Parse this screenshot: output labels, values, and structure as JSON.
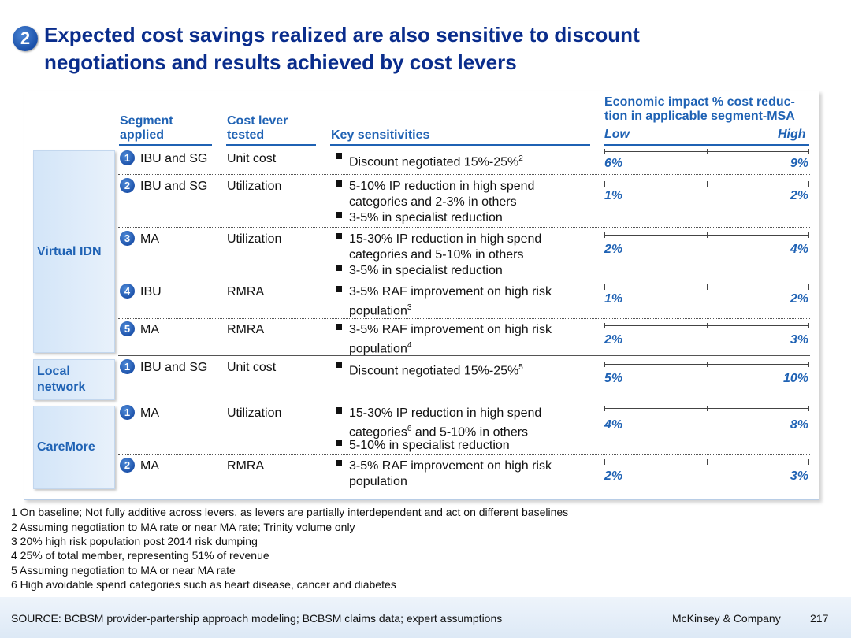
{
  "title": {
    "badge": "2",
    "line1": "Expected cost savings realized are also sensitive to discount",
    "line2": "negotiations and results achieved by cost levers"
  },
  "headers": {
    "segment_l1": "Segment",
    "segment_l2": "applied",
    "lever_l1": "Cost lever",
    "lever_l2": "tested",
    "key": "Key sensitivities",
    "econ_l1": "Economic impact % cost reduc-",
    "econ_l2": "tion in applicable segment-MSA",
    "low": "Low",
    "high": "High"
  },
  "groups": [
    {
      "name": "Virtual IDN"
    },
    {
      "name_l1": "Local",
      "name_l2": "network"
    },
    {
      "name": "CareMore"
    }
  ],
  "rows": [
    {
      "num": "1",
      "segment": "IBU and SG",
      "lever": "Unit cost",
      "b1": [
        "Discount negotiated 15%-25%"
      ],
      "sup1": "2",
      "low": "6%",
      "high": "9%"
    },
    {
      "num": "2",
      "segment": "IBU and SG",
      "lever": "Utilization",
      "b1": [
        "5-10% IP reduction in high spend",
        "categories and 2-3% in others"
      ],
      "b2": "3-5% in specialist reduction",
      "low": "1%",
      "high": "2%"
    },
    {
      "num": "3",
      "segment": "MA",
      "lever": "Utilization",
      "b1": [
        "15-30% IP reduction in high spend",
        "categories and 5-10% in others"
      ],
      "b2": "3-5% in specialist reduction",
      "low": "2%",
      "high": "4%"
    },
    {
      "num": "4",
      "segment": "IBU",
      "lever": "RMRA",
      "b1": [
        "3-5% RAF improvement on high risk",
        "population"
      ],
      "sup1": "3",
      "low": "1%",
      "high": "2%"
    },
    {
      "num": "5",
      "segment": "MA",
      "lever": "RMRA",
      "b1": [
        "3-5% RAF improvement on high risk",
        "population"
      ],
      "sup1": "4",
      "low": "2%",
      "high": "3%"
    },
    {
      "num": "1",
      "segment": "IBU and SG",
      "lever": "Unit cost",
      "b1": [
        "Discount negotiated 15%-25%"
      ],
      "sup1": "5",
      "low": "5%",
      "high": "10%"
    },
    {
      "num": "1",
      "segment": "MA",
      "lever": "Utilization",
      "b1": [
        "15-30% IP reduction in high spend",
        "categories",
        " and 5-10% in others"
      ],
      "sup1": "6",
      "b2": "5-10% in specialist reduction",
      "low": "4%",
      "high": "8%"
    },
    {
      "num": "2",
      "segment": "MA",
      "lever": "RMRA",
      "b1": [
        "3-5% RAF improvement on high risk",
        "population"
      ],
      "low": "2%",
      "high": "3%"
    }
  ],
  "footnotes": [
    "1 On baseline; Not fully additive across levers, as levers are partially interdependent and act on different baselines",
    "2 Assuming negotiation to MA rate or near MA rate; Trinity volume only",
    "3 20% high risk population post 2014 risk dumping",
    "4 25% of total member, representing 51% of revenue",
    "5 Assuming negotiation to MA or near MA rate",
    "6 High avoidable spend categories such as heart disease, cancer and diabetes"
  ],
  "source": "SOURCE: BCBSM provider-partership approach modeling; BCBSM claims data; expert assumptions",
  "company": "McKinsey & Company",
  "page": "217"
}
